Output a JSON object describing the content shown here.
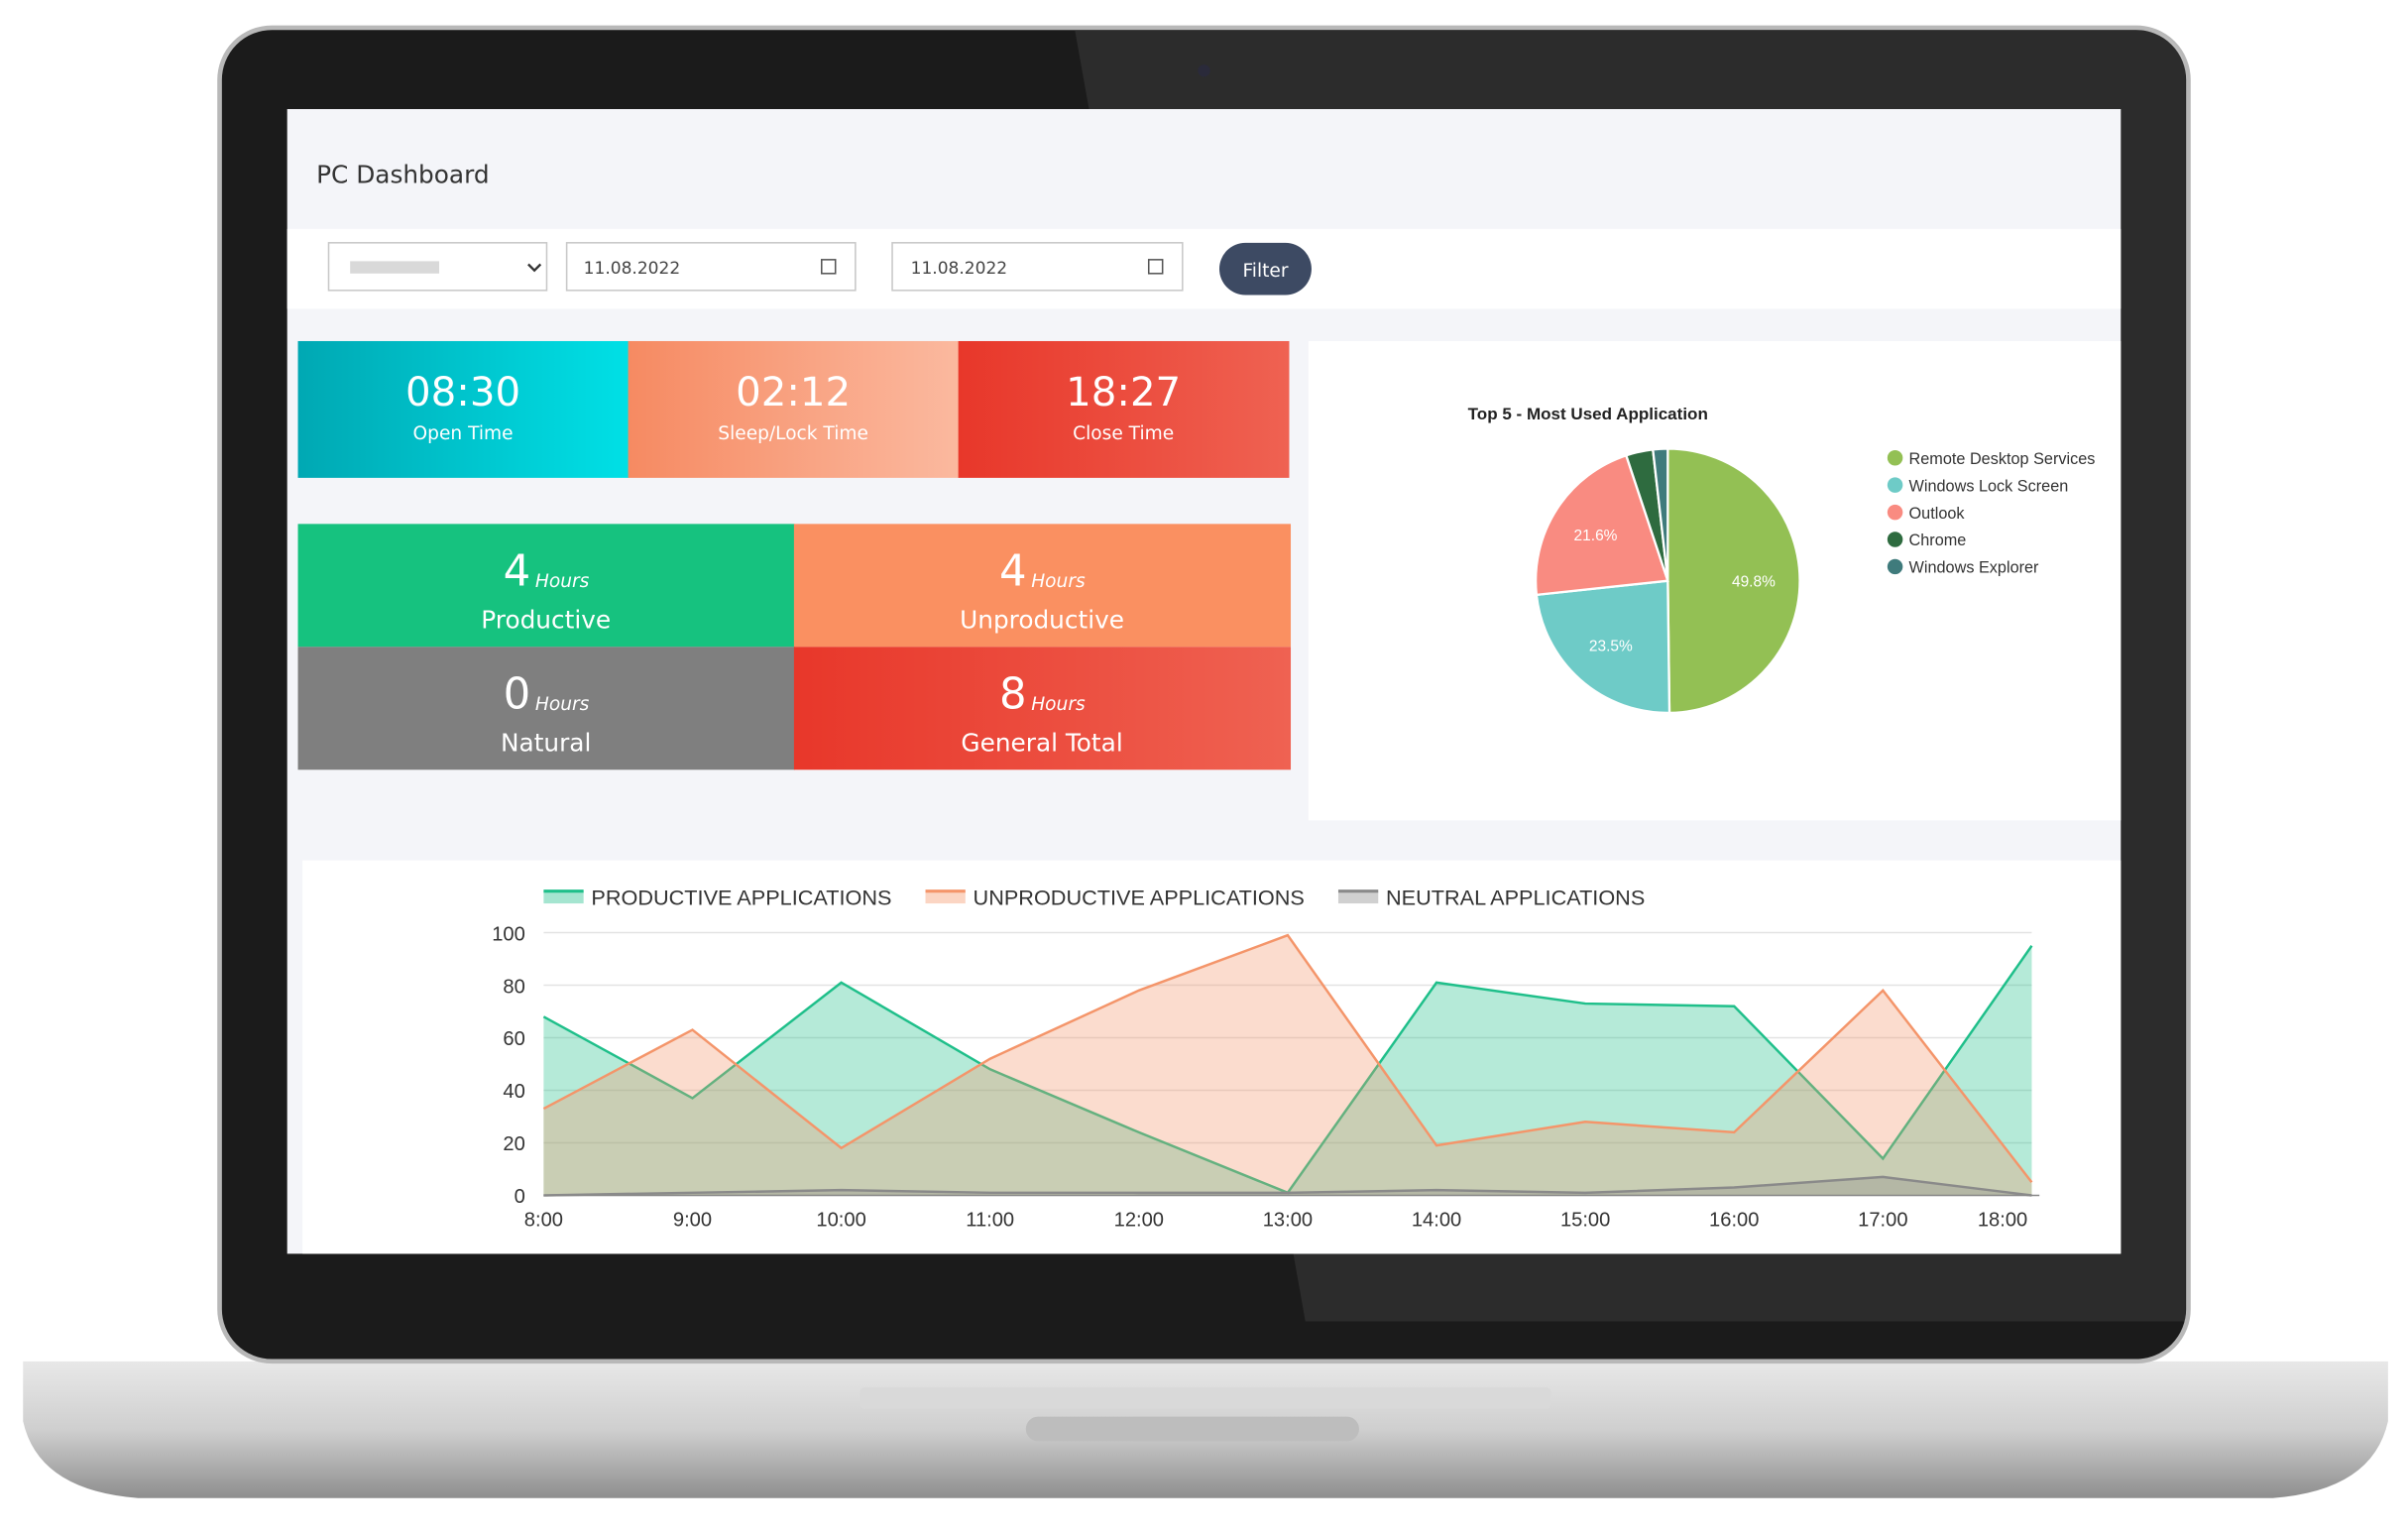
{
  "header": {
    "title": "PC Dashboard"
  },
  "filters": {
    "start_date": "11.08.2022",
    "end_date": "11.08.2022",
    "button": "Filter"
  },
  "time_tiles": [
    {
      "value": "08:30",
      "label": "Open Time"
    },
    {
      "value": "02:12",
      "label": "Sleep/Lock Time"
    },
    {
      "value": "18:27",
      "label": "Close Time"
    }
  ],
  "hour_tiles": [
    {
      "value": 4,
      "unit": "Hours",
      "label": "Productive"
    },
    {
      "value": 4,
      "unit": "Hours",
      "label": "Unproductive"
    },
    {
      "value": 0,
      "unit": "Hours",
      "label": "Natural"
    },
    {
      "value": 8,
      "unit": "Hours",
      "label": "General Total"
    }
  ],
  "chart_data": [
    {
      "type": "pie",
      "title": "Top 5 - Most Used Application",
      "categories": [
        "Remote Desktop Services",
        "Windows Lock Screen",
        "Outlook",
        "Chrome",
        "Windows Explorer"
      ],
      "values": [
        49.8,
        23.5,
        21.6,
        3.3,
        1.8
      ],
      "value_labels": [
        "49.8%",
        "23.5%",
        "21.6%",
        null,
        null
      ],
      "colors": [
        "#93c054",
        "#6ecbc7",
        "#f98b81",
        "#2e6b3f",
        "#3f7b7c"
      ]
    },
    {
      "type": "area",
      "categories": [
        "8:00",
        "9:00",
        "10:00",
        "11:00",
        "12:00",
        "13:00",
        "14:00",
        "15:00",
        "16:00",
        "17:00",
        "18:00"
      ],
      "series": [
        {
          "name": "PRODUCTIVE APPLICATIONS",
          "color": "#1fbf8a",
          "values": [
            68,
            37,
            81,
            48,
            24,
            1,
            81,
            73,
            72,
            14,
            95
          ]
        },
        {
          "name": "UNPRODUCTIVE APPLICATIONS",
          "color": "#f4956a",
          "values": [
            33,
            63,
            18,
            52,
            78,
            99,
            19,
            28,
            24,
            78,
            5
          ]
        },
        {
          "name": "NEUTRAL APPLICATIONS",
          "color": "#8a8a8a",
          "values": [
            0,
            1,
            2,
            1,
            1,
            1,
            2,
            1,
            3,
            7,
            0
          ]
        }
      ],
      "ylim": [
        0,
        100
      ],
      "yticks": [
        0,
        20,
        40,
        60,
        80,
        100
      ],
      "grid": true
    }
  ]
}
